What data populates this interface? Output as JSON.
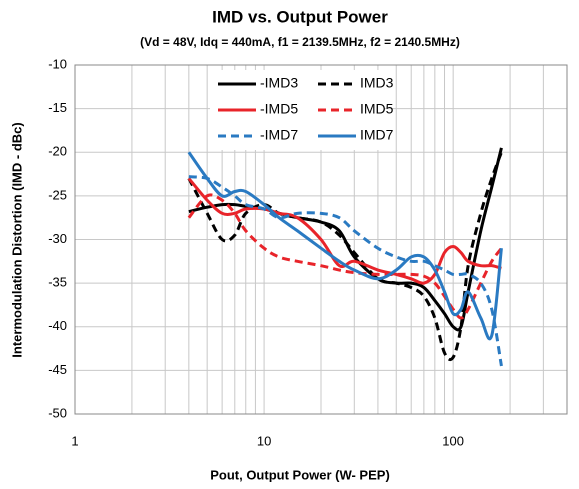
{
  "chart_data": {
    "type": "line",
    "title": "IMD vs. Output Power",
    "subtitle": "(Vd = 48V, Idq = 440mA, f1 = 2139.5MHz, f2 = 2140.5MHz)",
    "xlabel": "Pout, Output Power (W- PEP)",
    "ylabel": "Intermodulation Distortion (IMD - dBc)",
    "xscale": "log",
    "xlim": [
      1,
      400
    ],
    "xticks": [
      1,
      10,
      100
    ],
    "xminorticks": [
      2,
      3,
      4,
      5,
      6,
      7,
      8,
      9,
      20,
      30,
      40,
      50,
      60,
      70,
      80,
      90,
      200,
      300,
      400
    ],
    "ylim": [
      -50,
      -10
    ],
    "yticks": [
      -10,
      -15,
      -20,
      -25,
      -30,
      -35,
      -40,
      -45,
      -50
    ],
    "grid": true,
    "legend": "top",
    "x": [
      4,
      5,
      6,
      7,
      8,
      10,
      12,
      15,
      20,
      25,
      30,
      40,
      50,
      60,
      70,
      80,
      90,
      100,
      110,
      120,
      140,
      160,
      180
    ],
    "series": [
      {
        "name": "-IMD3",
        "color": "#000000",
        "dash": false,
        "values": [
          -26.8,
          -26.3,
          -26,
          -26,
          -26.2,
          -26.5,
          -27,
          -27.5,
          -28,
          -29,
          -32,
          -34.5,
          -35,
          -35,
          -35.5,
          -37,
          -38.5,
          -40,
          -40,
          -36,
          -29,
          -24,
          -19.5
        ]
      },
      {
        "name": "IMD3",
        "color": "#000000",
        "dash": true,
        "values": [
          -23,
          -27,
          -30,
          -29.5,
          -27,
          -26,
          -27,
          -27.5,
          -28,
          -29.5,
          -31.5,
          -34.5,
          -35,
          -35.5,
          -36.5,
          -39,
          -43,
          -43.5,
          -40,
          -33,
          -27,
          -23,
          -20
        ]
      },
      {
        "name": "-IMD5",
        "color": "#e8242a",
        "dash": false,
        "values": [
          -23,
          -25.5,
          -27,
          -27,
          -26.5,
          -26.5,
          -27,
          -27.5,
          -30,
          -33,
          -32.5,
          -33.5,
          -34,
          -34.5,
          -35,
          -34,
          -31.5,
          -30.8,
          -31.5,
          -32.5,
          -33,
          -33,
          -33.3
        ]
      },
      {
        "name": "IMD5",
        "color": "#e8242a",
        "dash": true,
        "values": [
          -27.5,
          -25,
          -25.5,
          -27,
          -29,
          -31,
          -32,
          -32.5,
          -33,
          -33.5,
          -33.8,
          -34,
          -34,
          -34,
          -34.2,
          -35,
          -36.5,
          -38,
          -39,
          -38,
          -35,
          -32.5,
          -31
        ]
      },
      {
        "name": "-IMD7",
        "color": "#2a7ac2",
        "dash": true,
        "values": [
          -22.8,
          -23,
          -24,
          -25,
          -26,
          -26.5,
          -27.5,
          -27,
          -27,
          -27.5,
          -29,
          -31,
          -32,
          -32.5,
          -32.5,
          -33,
          -33.5,
          -34,
          -34,
          -34,
          -35,
          -38,
          -44.5
        ]
      },
      {
        "name": "IMD7",
        "color": "#2a7ac2",
        "dash": false,
        "values": [
          -20,
          -23,
          -25,
          -24.5,
          -24.5,
          -26,
          -27.5,
          -29,
          -31,
          -32.5,
          -33.5,
          -34.5,
          -33.5,
          -32,
          -32,
          -33.5,
          -36,
          -38.5,
          -38,
          -36,
          -39,
          -41,
          -31
        ]
      }
    ]
  }
}
